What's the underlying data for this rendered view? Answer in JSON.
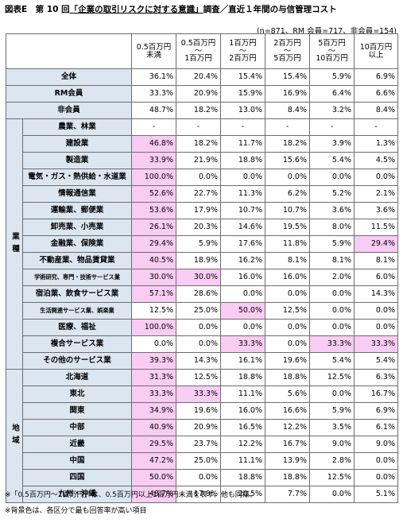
{
  "title_prefix": "図表E　第 10 回",
  "title_underlined": "「企業の取引リスクに対する意識」",
  "title_suffix": "調査／直近１年間の与信管理コスト",
  "sample_note": "(n=871、RM 会員=717、非会員=154)",
  "columns": [
    {
      "line1": "0.5百万円",
      "line2": "未満",
      "line3": ""
    },
    {
      "line1": "0.5百万円",
      "line2": "～",
      "line3": "1百万円"
    },
    {
      "line1": "1百万円",
      "line2": "～",
      "line3": "2百万円"
    },
    {
      "line1": "2百万円",
      "line2": "～",
      "line3": "5百万円"
    },
    {
      "line1": "5百万円",
      "line2": "～",
      "line3": "10百万円"
    },
    {
      "line1": "10百万円",
      "line2": "以上",
      "line3": ""
    }
  ],
  "highlight_color": "#f9ccf3",
  "header_fill_color": "#dce6f1",
  "summary_rows": [
    {
      "label": "全体",
      "values": [
        "36.1%",
        "20.4%",
        "15.4%",
        "15.4%",
        "5.9%",
        "6.9%"
      ],
      "highlight": []
    },
    {
      "label": "RM会員",
      "values": [
        "33.3%",
        "20.9%",
        "15.9%",
        "16.9%",
        "6.4%",
        "6.6%"
      ],
      "highlight": []
    },
    {
      "label": "非会員",
      "values": [
        "48.7%",
        "18.2%",
        "13.0%",
        "8.4%",
        "3.2%",
        "8.4%"
      ],
      "highlight": []
    }
  ],
  "groups": [
    {
      "name": "業種",
      "rows": [
        {
          "label": "農業、林業",
          "values": [
            "-",
            "-",
            "-",
            "-",
            "-",
            "-"
          ],
          "highlight": []
        },
        {
          "label": "建設業",
          "values": [
            "46.8%",
            "18.2%",
            "11.7%",
            "18.2%",
            "3.9%",
            "1.3%"
          ],
          "highlight": [
            0
          ]
        },
        {
          "label": "製造業",
          "values": [
            "33.9%",
            "21.9%",
            "18.8%",
            "15.6%",
            "5.4%",
            "4.5%"
          ],
          "highlight": [
            0
          ]
        },
        {
          "label": "電気・ガス・熱供給・水道業",
          "values": [
            "100.0%",
            "0.0%",
            "0.0%",
            "0.0%",
            "0.0%",
            "0.0%"
          ],
          "highlight": [
            0
          ]
        },
        {
          "label": "情報通信業",
          "values": [
            "52.6%",
            "22.7%",
            "11.3%",
            "6.2%",
            "5.2%",
            "2.1%"
          ],
          "highlight": [
            0
          ]
        },
        {
          "label": "運輸業、郵便業",
          "values": [
            "53.6%",
            "17.9%",
            "10.7%",
            "10.7%",
            "3.6%",
            "3.6%"
          ],
          "highlight": [
            0
          ]
        },
        {
          "label": "卸売業、小売業",
          "values": [
            "26.1%",
            "20.3%",
            "14.6%",
            "19.5%",
            "8.0%",
            "11.5%"
          ],
          "highlight": [
            0
          ]
        },
        {
          "label": "金融業、保険業",
          "values": [
            "29.4%",
            "5.9%",
            "17.6%",
            "11.8%",
            "5.9%",
            "29.4%"
          ],
          "highlight": [
            0,
            5
          ]
        },
        {
          "label": "不動産業、物品賃貸業",
          "values": [
            "40.5%",
            "18.9%",
            "16.2%",
            "8.1%",
            "8.1%",
            "8.1%"
          ],
          "highlight": [
            0
          ]
        },
        {
          "label": "学術研究、専門・技術サービス業",
          "values": [
            "30.0%",
            "30.0%",
            "16.0%",
            "16.0%",
            "2.0%",
            "6.0%"
          ],
          "highlight": [
            0,
            1
          ],
          "small": true
        },
        {
          "label": "宿泊業、飲食サービス業",
          "values": [
            "57.1%",
            "28.6%",
            "0.0%",
            "0.0%",
            "0.0%",
            "14.3%"
          ],
          "highlight": [
            0
          ]
        },
        {
          "label": "生活関連サービス業、娯楽業",
          "values": [
            "12.5%",
            "25.0%",
            "50.0%",
            "12.5%",
            "0.0%",
            "0.0%"
          ],
          "highlight": [
            2
          ],
          "small": true
        },
        {
          "label": "医療、福祉",
          "values": [
            "100.0%",
            "0.0%",
            "0.0%",
            "0.0%",
            "0.0%",
            "0.0%"
          ],
          "highlight": [
            0
          ]
        },
        {
          "label": "複合サービス業",
          "values": [
            "0.0%",
            "0.0%",
            "33.3%",
            "0.0%",
            "33.3%",
            "33.3%"
          ],
          "highlight": [
            2,
            4,
            5
          ]
        },
        {
          "label": "その他のサービス業",
          "values": [
            "39.3%",
            "14.3%",
            "16.1%",
            "19.6%",
            "5.4%",
            "5.4%"
          ],
          "highlight": [
            0
          ]
        }
      ]
    },
    {
      "name": "地域",
      "rows": [
        {
          "label": "北海道",
          "values": [
            "31.3%",
            "12.5%",
            "18.8%",
            "18.8%",
            "12.5%",
            "6.3%"
          ],
          "highlight": [
            0
          ]
        },
        {
          "label": "東北",
          "values": [
            "33.3%",
            "33.3%",
            "11.1%",
            "5.6%",
            "0.0%",
            "16.7%"
          ],
          "highlight": [
            0,
            1
          ]
        },
        {
          "label": "関東",
          "values": [
            "34.9%",
            "19.6%",
            "16.0%",
            "16.6%",
            "5.9%",
            "6.9%"
          ],
          "highlight": [
            0
          ]
        },
        {
          "label": "中部",
          "values": [
            "40.9%",
            "20.9%",
            "16.5%",
            "12.2%",
            "3.5%",
            "6.1%"
          ],
          "highlight": [
            0
          ]
        },
        {
          "label": "近畿",
          "values": [
            "29.5%",
            "23.7%",
            "12.2%",
            "16.7%",
            "9.0%",
            "9.0%"
          ],
          "highlight": [
            0
          ]
        },
        {
          "label": "中国",
          "values": [
            "47.2%",
            "25.0%",
            "11.1%",
            "13.9%",
            "2.8%",
            "0.0%"
          ],
          "highlight": [
            0
          ]
        },
        {
          "label": "四国",
          "values": [
            "50.0%",
            "0.0%",
            "18.8%",
            "18.8%",
            "12.5%",
            "0.0%"
          ],
          "highlight": [
            0
          ]
        },
        {
          "label": "九州・沖縄",
          "values": [
            "48.7%",
            "17.9%",
            "20.5%",
            "7.7%",
            "0.0%",
            "5.1%"
          ],
          "highlight": [
            0
          ]
        }
      ]
    }
  ],
  "footnotes": [
    "※「0.5百万円～1百万円」は、0.5百万円以上1百万円未満を表す。他も同様。",
    "※背景色は、各区分で最も回答率が高い項目"
  ]
}
